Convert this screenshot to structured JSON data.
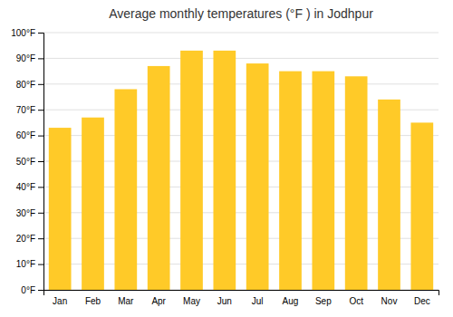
{
  "chart_data": {
    "type": "bar",
    "title": "Average monthly temperatures (°F ) in Jodhpur",
    "categories": [
      "Jan",
      "Feb",
      "Mar",
      "Apr",
      "May",
      "Jun",
      "Jul",
      "Aug",
      "Sep",
      "Oct",
      "Nov",
      "Dec"
    ],
    "values": [
      63,
      67,
      78,
      87,
      93,
      93,
      88,
      85,
      85,
      83,
      74,
      65
    ],
    "color": "#FFCA28",
    "ylim": [
      0,
      100
    ],
    "yticks": [
      {
        "value": 0,
        "label": "0°F"
      },
      {
        "value": 10,
        "label": "10°F"
      },
      {
        "value": 20,
        "label": "20°F"
      },
      {
        "value": 30,
        "label": "30°F"
      },
      {
        "value": 40,
        "label": "40°F"
      },
      {
        "value": 50,
        "label": "50°F"
      },
      {
        "value": 60,
        "label": "60°F"
      },
      {
        "value": 70,
        "label": "70°F"
      },
      {
        "value": 80,
        "label": "80°F"
      },
      {
        "value": 90,
        "label": "90°F"
      },
      {
        "value": 100,
        "label": "100°F"
      }
    ],
    "grid": true
  }
}
